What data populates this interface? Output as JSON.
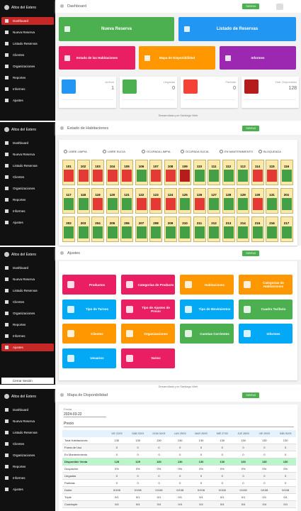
{
  "app_name": "Altos del Estero",
  "menu": [
    "Dashboard",
    "Nueva Reserva",
    "Listado Reservas",
    "Clientes",
    "Organizaciones",
    "Reportes",
    "Informes",
    "Ajustes"
  ],
  "logout": "Cerrar Sesión",
  "header_button": "TARIFAS",
  "footer": "Desarrollado por Santiago Web",
  "dashboard": {
    "title": "Dashboard",
    "actions": [
      {
        "label": "Nueva Reserva",
        "color": "#4caf50"
      },
      {
        "label": "Listado de Reservas",
        "color": "#2196f3"
      },
      {
        "label": "Estado de las Habitaciones",
        "color": "#e91e63"
      },
      {
        "label": "Mapa de Disponibilidad",
        "color": "#ff9800"
      },
      {
        "label": "Informes",
        "color": "#9c27b0"
      }
    ],
    "stats": [
      {
        "label": "Arribos",
        "value": "1",
        "color": "#2196f3"
      },
      {
        "label": "Llegadas",
        "value": "0",
        "color": "#4caf50"
      },
      {
        "label": "Partidas",
        "value": "0",
        "color": "#f44336"
      },
      {
        "label": "Hab. Disponibles",
        "value": "128",
        "color": "#b71c1c"
      }
    ]
  },
  "rooms": {
    "title": "Estado de Habitaciones",
    "legend": [
      "LIBRE LIMPIA",
      "LIBRE SUCIA",
      "OCUPADA LIMPIA",
      "OCUPADA SUCIA",
      "EN MANTENIMIENTO",
      "BLOQUEADA"
    ],
    "rooms": [
      {
        "number": "101",
        "color": "#e53935"
      },
      {
        "number": "102",
        "color": "#e53935"
      },
      {
        "number": "103",
        "color": "#e53935"
      },
      {
        "number": "104",
        "color": "#e53935"
      },
      {
        "number": "105",
        "color": "#e53935"
      },
      {
        "number": "106",
        "color": "#43a047"
      },
      {
        "number": "107",
        "color": "#e53935"
      },
      {
        "number": "108",
        "color": "#e53935"
      },
      {
        "number": "109",
        "color": "#b71c1c"
      },
      {
        "number": "110",
        "color": "#43a047"
      },
      {
        "number": "111",
        "color": "#43a047"
      },
      {
        "number": "112",
        "color": "#43a047"
      },
      {
        "number": "113",
        "color": "#43a047"
      },
      {
        "number": "114",
        "color": "#e53935"
      },
      {
        "number": "115",
        "color": "#e53935"
      },
      {
        "number": "116",
        "color": "#43a047"
      },
      {
        "number": "117",
        "color": "#43a047"
      },
      {
        "number": "118",
        "color": "#43a047"
      },
      {
        "number": "119",
        "color": "#e53935"
      },
      {
        "number": "120",
        "color": "#43a047"
      },
      {
        "number": "121",
        "color": "#43a047"
      },
      {
        "number": "122",
        "color": "#e53935"
      },
      {
        "number": "123",
        "color": "#e53935"
      },
      {
        "number": "124",
        "color": "#e53935"
      },
      {
        "number": "125",
        "color": "#43a047"
      },
      {
        "number": "126",
        "color": "#e53935"
      },
      {
        "number": "127",
        "color": "#43a047"
      },
      {
        "number": "128",
        "color": "#43a047"
      },
      {
        "number": "129",
        "color": "#43a047"
      },
      {
        "number": "130",
        "color": "#e53935"
      },
      {
        "number": "131",
        "color": "#43a047"
      },
      {
        "number": "201",
        "color": "#43a047"
      },
      {
        "number": "202",
        "color": "#43a047"
      },
      {
        "number": "203",
        "color": "#43a047"
      },
      {
        "number": "204",
        "color": "#43a047"
      },
      {
        "number": "205",
        "color": "#43a047"
      },
      {
        "number": "206",
        "color": "#43a047"
      },
      {
        "number": "207",
        "color": "#43a047"
      },
      {
        "number": "208",
        "color": "#43a047"
      },
      {
        "number": "209",
        "color": "#43a047"
      },
      {
        "number": "210",
        "color": "#43a047"
      },
      {
        "number": "211",
        "color": "#43a047"
      },
      {
        "number": "212",
        "color": "#43a047"
      },
      {
        "number": "213",
        "color": "#43a047"
      },
      {
        "number": "214",
        "color": "#43a047"
      },
      {
        "number": "215",
        "color": "#43a047"
      },
      {
        "number": "216",
        "color": "#43a047"
      },
      {
        "number": "217",
        "color": "#43a047"
      }
    ]
  },
  "settings": {
    "title": "Ajustes",
    "tiles": [
      {
        "label": "Productos",
        "color": "#e91e63"
      },
      {
        "label": "Categorías de Producto",
        "color": "#e91e63"
      },
      {
        "label": "Habitaciones",
        "color": "#ff9800"
      },
      {
        "label": "Categorías de Habitaciones",
        "color": "#ff9800"
      },
      {
        "label": "Tipo de Turnos",
        "color": "#03a9f4"
      },
      {
        "label": "Tipo de Ajustes de Precio",
        "color": "#e91e63"
      },
      {
        "label": "Tipo de Movimientos",
        "color": "#03a9f4"
      },
      {
        "label": "Cuadro Tarifario",
        "color": "#4caf50"
      },
      {
        "label": "Clientes",
        "color": "#ff9800"
      },
      {
        "label": "Organizaciones",
        "color": "#ff9800"
      },
      {
        "label": "Cuentas Corrientes",
        "color": "#4caf50"
      },
      {
        "label": "Informes",
        "color": "#03a9f4"
      },
      {
        "label": "Usuarios",
        "color": "#03a9f4"
      },
      {
        "label": "Varios",
        "color": "#e91e63"
      }
    ]
  },
  "map": {
    "title": "Mapa de Disponibilidad",
    "date_label": "Fecha",
    "date": "2024-03-22",
    "price_label": "Precio",
    "columns": [
      "VIE 22/03",
      "SÁB 23/03",
      "DOM 24/03",
      "LUN 25/03",
      "MAR 26/03",
      "MIÉ 27/03",
      "JUE 28/03",
      "VIE 29/03",
      "SÁB 30/03"
    ],
    "rows": [
      {
        "label": "Total Habitaciones",
        "cells": [
          "130",
          "130",
          "130",
          "130",
          "130",
          "130",
          "130",
          "130",
          "130"
        ]
      },
      {
        "label": "Fuera de Uso",
        "cells": [
          "0",
          "0",
          "0",
          "0",
          "0",
          "0",
          "0",
          "0",
          "0"
        ]
      },
      {
        "label": "En Mantenimiento",
        "cells": [
          "0",
          "0",
          "0",
          "0",
          "0",
          "0",
          "0",
          "0",
          "0"
        ]
      },
      {
        "label": "Disponible Venta",
        "cells": [
          "128",
          "129",
          "130",
          "130",
          "130",
          "130",
          "130",
          "130",
          "130"
        ]
      },
      {
        "label": "Ocupación",
        "cells": [
          "0%",
          "0%",
          "0%",
          "0%",
          "0%",
          "0%",
          "0%",
          "0%",
          "0%"
        ]
      },
      {
        "label": "Llegadas",
        "cells": [
          "0",
          "0",
          "0",
          "0",
          "0",
          "0",
          "0",
          "0",
          "0"
        ]
      },
      {
        "label": "Partidas",
        "cells": [
          "0",
          "0",
          "0",
          "0",
          "0",
          "0",
          "0",
          "0",
          "0"
        ]
      },
      {
        "label": "Doble",
        "cells": [
          "0/108",
          "0/108",
          "0/108",
          "0/108",
          "0/108",
          "0/108",
          "0/108",
          "0/108",
          "0/108"
        ]
      },
      {
        "label": "Triple",
        "cells": [
          "0/1",
          "0/1",
          "0/1",
          "0/1",
          "0/1",
          "0/1",
          "0/1",
          "0/1",
          "0/1"
        ]
      },
      {
        "label": "Cuadruple",
        "cells": [
          "0/4",
          "0/4",
          "0/4",
          "0/4",
          "0/4",
          "0/4",
          "0/4",
          "0/4",
          "0/4"
        ]
      }
    ]
  }
}
